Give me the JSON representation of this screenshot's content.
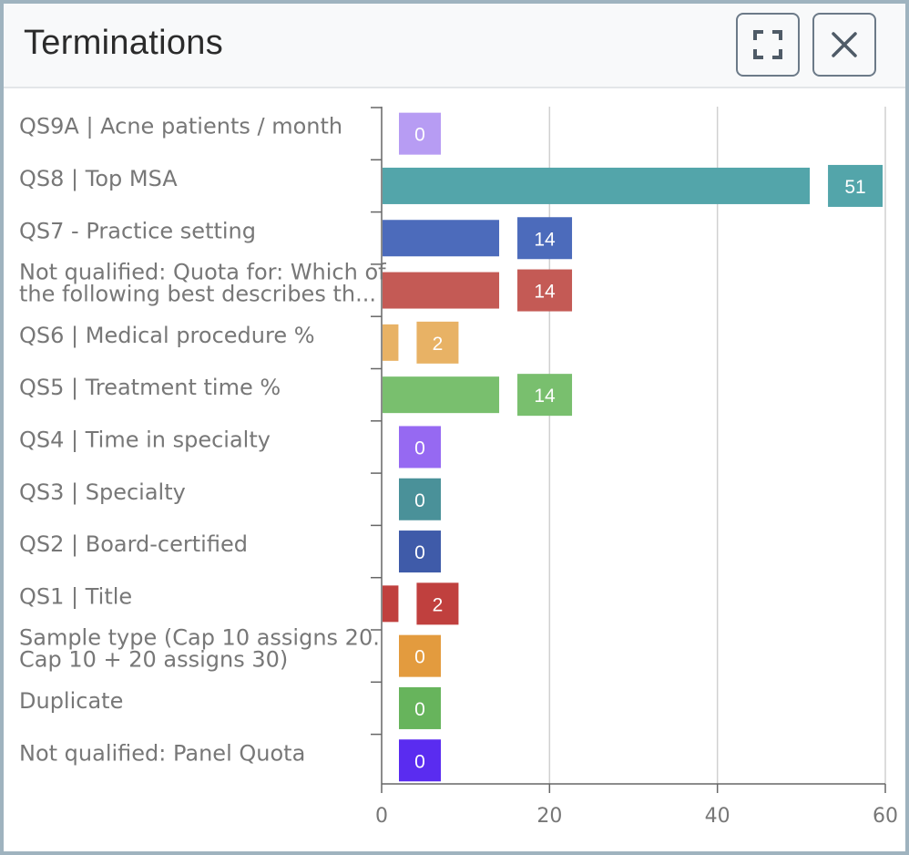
{
  "header": {
    "title": "Terminations",
    "expand_icon": "expand-icon",
    "close_icon": "close-icon"
  },
  "chart_data": {
    "type": "bar",
    "orientation": "horizontal",
    "title": "",
    "xlabel": "",
    "ylabel": "",
    "xlim": [
      0,
      60
    ],
    "xticks": [
      0,
      20,
      40,
      60
    ],
    "grid": true,
    "categories": [
      [
        "QS9A | Acne patients / month"
      ],
      [
        "QS8 | Top MSA"
      ],
      [
        "QS7 - Practice setting"
      ],
      [
        "Not qualified: Quota for: Which of",
        "the following best describes th..."
      ],
      [
        "QS6 | Medical procedure %"
      ],
      [
        "QS5 | Treatment time %"
      ],
      [
        "QS4 | Time in specialty"
      ],
      [
        "QS3 | Specialty"
      ],
      [
        "QS2 | Board-certified"
      ],
      [
        "QS1 | Title"
      ],
      [
        "Sample type (Cap 10 assigns 20.",
        "Cap 10 + 20 assigns 30)"
      ],
      [
        "Duplicate"
      ],
      [
        "Not qualified: Panel Quota"
      ]
    ],
    "values": [
      0,
      51,
      14,
      14,
      2,
      14,
      0,
      0,
      0,
      2,
      0,
      0,
      0
    ],
    "colors": [
      "#b79cf3",
      "#53a5aa",
      "#4c6bbb",
      "#c45a55",
      "#e8b265",
      "#79bf6e",
      "#9669f2",
      "#4a9199",
      "#3f5ba9",
      "#c0403e",
      "#e39b3e",
      "#67b45c",
      "#5a2cf0"
    ]
  }
}
